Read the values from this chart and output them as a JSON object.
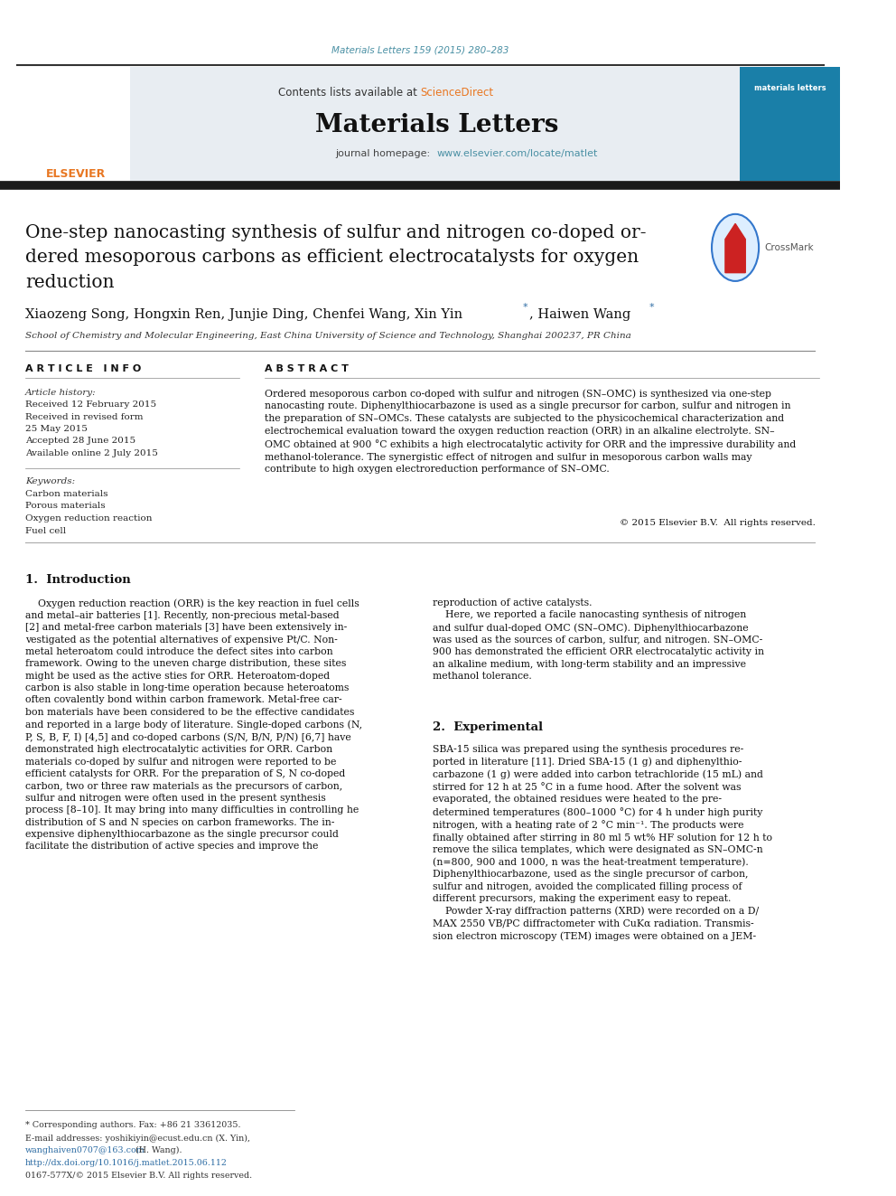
{
  "page_width": 9.92,
  "page_height": 13.23,
  "background_color": "#ffffff",
  "top_citation": "Materials Letters 159 (2015) 280–283",
  "top_citation_color": "#4a90a4",
  "header_bg": "#e8edf2",
  "journal_name": "Materials Letters",
  "journal_url": "www.elsevier.com/locate/matlet",
  "journal_url_color": "#4a90a4",
  "article_info_header": "A R T I C L E   I N F O",
  "abstract_header": "A B S T R A C T",
  "article_history": [
    "Received 12 February 2015",
    "Received in revised form",
    "25 May 2015",
    "Accepted 28 June 2015",
    "Available online 2 July 2015"
  ],
  "keywords": [
    "Carbon materials",
    "Porous materials",
    "Oxygen reduction reaction",
    "Fuel cell"
  ],
  "affiliation": "School of Chemistry and Molecular Engineering, East China University of Science and Technology, Shanghai 200237, PR China",
  "copyright_line": "© 2015 Elsevier B.V.  All rights reserved.",
  "footnote_doi": "http://dx.doi.org/10.1016/j.matlet.2015.06.112",
  "footnote_rights": "0167-577X/© 2015 Elsevier B.V. All rights reserved.",
  "ref_color": "#2e6da4",
  "star_color": "#2e6da4",
  "orange_color": "#e87722"
}
